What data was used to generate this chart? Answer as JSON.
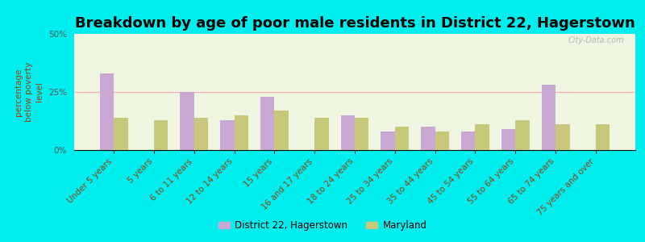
{
  "title": "Breakdown by age of poor male residents in District 22, Hagerstown",
  "categories": [
    "Under 5 years",
    "5 years",
    "6 to 11 years",
    "12 to 14 years",
    "15 years",
    "16 and 17 years",
    "18 to 24 years",
    "25 to 34 years",
    "35 to 44 years",
    "45 to 54 years",
    "55 to 64 years",
    "65 to 74 years",
    "75 years and over"
  ],
  "district_values": [
    33,
    0,
    25,
    13,
    23,
    0,
    15,
    8,
    10,
    8,
    9,
    28,
    0
  ],
  "maryland_values": [
    14,
    13,
    14,
    15,
    17,
    14,
    14,
    10,
    8,
    11,
    13,
    11,
    11
  ],
  "district_color": "#c9a8d4",
  "maryland_color": "#c8c87a",
  "background_color": "#00eeee",
  "plot_bg_color": "#eef5e0",
  "ylabel": "percentage\nbelow poverty\nlevel",
  "ylim": [
    0,
    50
  ],
  "yticks": [
    0,
    25,
    50
  ],
  "ytick_labels": [
    "0%",
    "25%",
    "50%"
  ],
  "legend_district": "District 22, Hagerstown",
  "legend_maryland": "Maryland",
  "title_fontsize": 13,
  "tick_fontsize": 7.5,
  "ylabel_fontsize": 7.5,
  "watermark": "City-Data.com"
}
